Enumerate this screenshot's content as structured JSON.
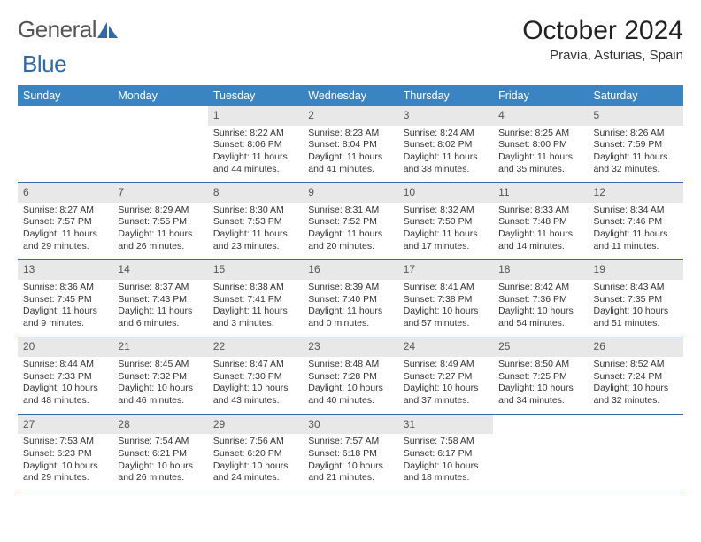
{
  "logo": {
    "text1": "General",
    "text2": "Blue"
  },
  "title": "October 2024",
  "location": "Pravia, Asturias, Spain",
  "colors": {
    "header_bg": "#3b84c4",
    "header_text": "#ffffff",
    "daynum_bg": "#e8e8e8",
    "row_separator": "#2f6aa8",
    "logo_gray": "#555555",
    "logo_blue": "#2f6aa8"
  },
  "day_headers": [
    "Sunday",
    "Monday",
    "Tuesday",
    "Wednesday",
    "Thursday",
    "Friday",
    "Saturday"
  ],
  "weeks": [
    [
      null,
      null,
      {
        "n": "1",
        "sr": "Sunrise: 8:22 AM",
        "ss": "Sunset: 8:06 PM",
        "d1": "Daylight: 11 hours",
        "d2": "and 44 minutes."
      },
      {
        "n": "2",
        "sr": "Sunrise: 8:23 AM",
        "ss": "Sunset: 8:04 PM",
        "d1": "Daylight: 11 hours",
        "d2": "and 41 minutes."
      },
      {
        "n": "3",
        "sr": "Sunrise: 8:24 AM",
        "ss": "Sunset: 8:02 PM",
        "d1": "Daylight: 11 hours",
        "d2": "and 38 minutes."
      },
      {
        "n": "4",
        "sr": "Sunrise: 8:25 AM",
        "ss": "Sunset: 8:00 PM",
        "d1": "Daylight: 11 hours",
        "d2": "and 35 minutes."
      },
      {
        "n": "5",
        "sr": "Sunrise: 8:26 AM",
        "ss": "Sunset: 7:59 PM",
        "d1": "Daylight: 11 hours",
        "d2": "and 32 minutes."
      }
    ],
    [
      {
        "n": "6",
        "sr": "Sunrise: 8:27 AM",
        "ss": "Sunset: 7:57 PM",
        "d1": "Daylight: 11 hours",
        "d2": "and 29 minutes."
      },
      {
        "n": "7",
        "sr": "Sunrise: 8:29 AM",
        "ss": "Sunset: 7:55 PM",
        "d1": "Daylight: 11 hours",
        "d2": "and 26 minutes."
      },
      {
        "n": "8",
        "sr": "Sunrise: 8:30 AM",
        "ss": "Sunset: 7:53 PM",
        "d1": "Daylight: 11 hours",
        "d2": "and 23 minutes."
      },
      {
        "n": "9",
        "sr": "Sunrise: 8:31 AM",
        "ss": "Sunset: 7:52 PM",
        "d1": "Daylight: 11 hours",
        "d2": "and 20 minutes."
      },
      {
        "n": "10",
        "sr": "Sunrise: 8:32 AM",
        "ss": "Sunset: 7:50 PM",
        "d1": "Daylight: 11 hours",
        "d2": "and 17 minutes."
      },
      {
        "n": "11",
        "sr": "Sunrise: 8:33 AM",
        "ss": "Sunset: 7:48 PM",
        "d1": "Daylight: 11 hours",
        "d2": "and 14 minutes."
      },
      {
        "n": "12",
        "sr": "Sunrise: 8:34 AM",
        "ss": "Sunset: 7:46 PM",
        "d1": "Daylight: 11 hours",
        "d2": "and 11 minutes."
      }
    ],
    [
      {
        "n": "13",
        "sr": "Sunrise: 8:36 AM",
        "ss": "Sunset: 7:45 PM",
        "d1": "Daylight: 11 hours",
        "d2": "and 9 minutes."
      },
      {
        "n": "14",
        "sr": "Sunrise: 8:37 AM",
        "ss": "Sunset: 7:43 PM",
        "d1": "Daylight: 11 hours",
        "d2": "and 6 minutes."
      },
      {
        "n": "15",
        "sr": "Sunrise: 8:38 AM",
        "ss": "Sunset: 7:41 PM",
        "d1": "Daylight: 11 hours",
        "d2": "and 3 minutes."
      },
      {
        "n": "16",
        "sr": "Sunrise: 8:39 AM",
        "ss": "Sunset: 7:40 PM",
        "d1": "Daylight: 11 hours",
        "d2": "and 0 minutes."
      },
      {
        "n": "17",
        "sr": "Sunrise: 8:41 AM",
        "ss": "Sunset: 7:38 PM",
        "d1": "Daylight: 10 hours",
        "d2": "and 57 minutes."
      },
      {
        "n": "18",
        "sr": "Sunrise: 8:42 AM",
        "ss": "Sunset: 7:36 PM",
        "d1": "Daylight: 10 hours",
        "d2": "and 54 minutes."
      },
      {
        "n": "19",
        "sr": "Sunrise: 8:43 AM",
        "ss": "Sunset: 7:35 PM",
        "d1": "Daylight: 10 hours",
        "d2": "and 51 minutes."
      }
    ],
    [
      {
        "n": "20",
        "sr": "Sunrise: 8:44 AM",
        "ss": "Sunset: 7:33 PM",
        "d1": "Daylight: 10 hours",
        "d2": "and 48 minutes."
      },
      {
        "n": "21",
        "sr": "Sunrise: 8:45 AM",
        "ss": "Sunset: 7:32 PM",
        "d1": "Daylight: 10 hours",
        "d2": "and 46 minutes."
      },
      {
        "n": "22",
        "sr": "Sunrise: 8:47 AM",
        "ss": "Sunset: 7:30 PM",
        "d1": "Daylight: 10 hours",
        "d2": "and 43 minutes."
      },
      {
        "n": "23",
        "sr": "Sunrise: 8:48 AM",
        "ss": "Sunset: 7:28 PM",
        "d1": "Daylight: 10 hours",
        "d2": "and 40 minutes."
      },
      {
        "n": "24",
        "sr": "Sunrise: 8:49 AM",
        "ss": "Sunset: 7:27 PM",
        "d1": "Daylight: 10 hours",
        "d2": "and 37 minutes."
      },
      {
        "n": "25",
        "sr": "Sunrise: 8:50 AM",
        "ss": "Sunset: 7:25 PM",
        "d1": "Daylight: 10 hours",
        "d2": "and 34 minutes."
      },
      {
        "n": "26",
        "sr": "Sunrise: 8:52 AM",
        "ss": "Sunset: 7:24 PM",
        "d1": "Daylight: 10 hours",
        "d2": "and 32 minutes."
      }
    ],
    [
      {
        "n": "27",
        "sr": "Sunrise: 7:53 AM",
        "ss": "Sunset: 6:23 PM",
        "d1": "Daylight: 10 hours",
        "d2": "and 29 minutes."
      },
      {
        "n": "28",
        "sr": "Sunrise: 7:54 AM",
        "ss": "Sunset: 6:21 PM",
        "d1": "Daylight: 10 hours",
        "d2": "and 26 minutes."
      },
      {
        "n": "29",
        "sr": "Sunrise: 7:56 AM",
        "ss": "Sunset: 6:20 PM",
        "d1": "Daylight: 10 hours",
        "d2": "and 24 minutes."
      },
      {
        "n": "30",
        "sr": "Sunrise: 7:57 AM",
        "ss": "Sunset: 6:18 PM",
        "d1": "Daylight: 10 hours",
        "d2": "and 21 minutes."
      },
      {
        "n": "31",
        "sr": "Sunrise: 7:58 AM",
        "ss": "Sunset: 6:17 PM",
        "d1": "Daylight: 10 hours",
        "d2": "and 18 minutes."
      },
      null,
      null
    ]
  ]
}
